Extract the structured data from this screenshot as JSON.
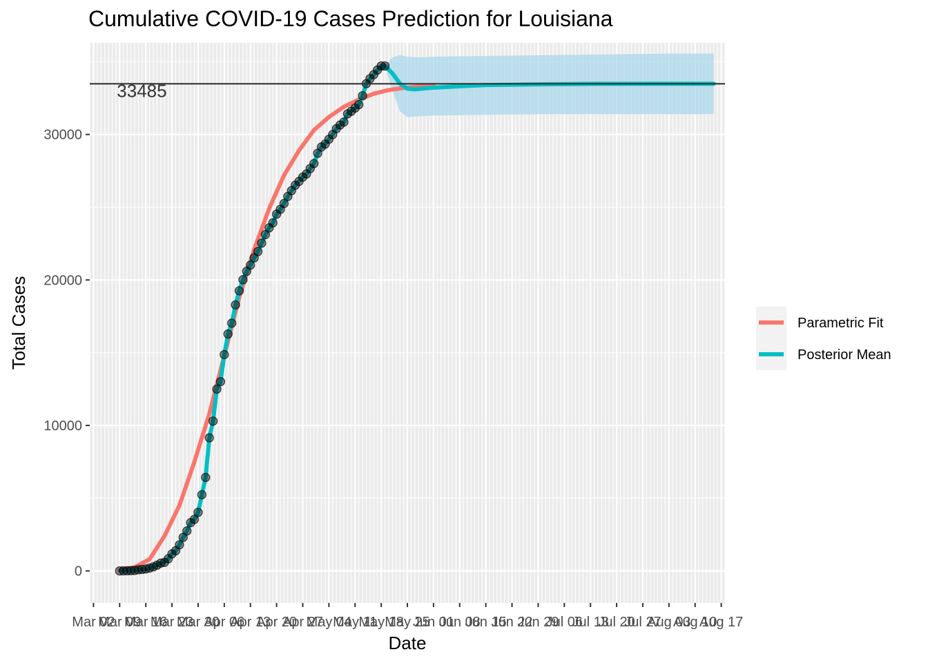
{
  "chart_data": {
    "type": "line",
    "title": "Cumulative COVID-19 Cases Prediction for Louisiana",
    "xlabel": "Date",
    "ylabel": "Total Cases",
    "xlim": [
      "2020-03-01",
      "2020-08-18"
    ],
    "ylim": [
      -2200,
      36300
    ],
    "grid": true,
    "legend_position": "right",
    "y_ticks": [
      0,
      10000,
      20000,
      30000
    ],
    "y_tick_labels": [
      "0",
      "10000",
      "20000",
      "30000"
    ],
    "x_ticks": [
      "2020-03-02",
      "2020-03-09",
      "2020-03-16",
      "2020-03-23",
      "2020-03-30",
      "2020-04-06",
      "2020-04-13",
      "2020-04-20",
      "2020-04-27",
      "2020-05-04",
      "2020-05-11",
      "2020-05-18",
      "2020-05-25",
      "2020-06-01",
      "2020-06-08",
      "2020-06-15",
      "2020-06-22",
      "2020-06-29",
      "2020-07-06",
      "2020-07-13",
      "2020-07-20",
      "2020-07-27",
      "2020-08-03",
      "2020-08-10",
      "2020-08-17"
    ],
    "x_tick_labels": [
      "Mar 02",
      "Mar 09",
      "Mar 16",
      "Mar 23",
      "Mar 30",
      "Apr 06",
      "Apr 13",
      "Apr 20",
      "Apr 27",
      "May 04",
      "May 11",
      "May 18",
      "May 25",
      "Jun 01",
      "Jun 08",
      "Jun 15",
      "Jun 22",
      "Jun 29",
      "Jul 06",
      "Jul 13",
      "Jul 20",
      "Jul 27",
      "Aug 03",
      "Aug 10",
      "Aug 17"
    ],
    "hline": {
      "value": 33485,
      "label": "33485",
      "color": "#333333"
    },
    "observed": {
      "dates": [
        "2020-03-09",
        "2020-03-10",
        "2020-03-11",
        "2020-03-12",
        "2020-03-13",
        "2020-03-14",
        "2020-03-15",
        "2020-03-16",
        "2020-03-17",
        "2020-03-18",
        "2020-03-19",
        "2020-03-20",
        "2020-03-21",
        "2020-03-22",
        "2020-03-23",
        "2020-03-24",
        "2020-03-25",
        "2020-03-26",
        "2020-03-27",
        "2020-03-28",
        "2020-03-29",
        "2020-03-30",
        "2020-03-31",
        "2020-04-01",
        "2020-04-02",
        "2020-04-03",
        "2020-04-04",
        "2020-04-05",
        "2020-04-06",
        "2020-04-07",
        "2020-04-08",
        "2020-04-09",
        "2020-04-10",
        "2020-04-11",
        "2020-04-12",
        "2020-04-13",
        "2020-04-14",
        "2020-04-15",
        "2020-04-16",
        "2020-04-17",
        "2020-04-18",
        "2020-04-19",
        "2020-04-20",
        "2020-04-21",
        "2020-04-22",
        "2020-04-23",
        "2020-04-24",
        "2020-04-25",
        "2020-04-26",
        "2020-04-27",
        "2020-04-28",
        "2020-04-29",
        "2020-04-30",
        "2020-05-01",
        "2020-05-02",
        "2020-05-03",
        "2020-05-04",
        "2020-05-05",
        "2020-05-06",
        "2020-05-07",
        "2020-05-08",
        "2020-05-09",
        "2020-05-10",
        "2020-05-11",
        "2020-05-12",
        "2020-05-13",
        "2020-05-14",
        "2020-05-15",
        "2020-05-16",
        "2020-05-17",
        "2020-05-18",
        "2020-05-19"
      ],
      "values": [
        1,
        6,
        13,
        19,
        36,
        77,
        103,
        136,
        196,
        280,
        392,
        537,
        585,
        837,
        1172,
        1388,
        1795,
        2305,
        2746,
        3315,
        3540,
        4025,
        5237,
        6424,
        9150,
        10297,
        12496,
        13010,
        14867,
        16284,
        17030,
        18283,
        19253,
        20014,
        20595,
        21016,
        21518,
        21951,
        22532,
        23118,
        23580,
        23928,
        24523,
        24854,
        25258,
        25739,
        26140,
        26512,
        26773,
        27068,
        27286,
        27660,
        28001,
        28711,
        29140,
        29340,
        29673,
        29996,
        30399,
        30652,
        30855,
        31417,
        31600,
        31815,
        32050,
        32662,
        33489,
        33837,
        34117,
        34432,
        34709,
        34709
      ]
    },
    "series": [
      {
        "name": "Parametric Fit",
        "color": "#F8766D",
        "dates": [
          "2020-03-09",
          "2020-03-13",
          "2020-03-17",
          "2020-03-21",
          "2020-03-25",
          "2020-03-29",
          "2020-04-02",
          "2020-04-06",
          "2020-04-10",
          "2020-04-14",
          "2020-04-18",
          "2020-04-22",
          "2020-04-26",
          "2020-04-30",
          "2020-05-04",
          "2020-05-08",
          "2020-05-12",
          "2020-05-16",
          "2020-05-20",
          "2020-05-24",
          "2020-05-28",
          "2020-06-01"
        ],
        "values": [
          50,
          250,
          800,
          2400,
          4500,
          7500,
          10800,
          14800,
          18800,
          22100,
          24900,
          27200,
          28900,
          30300,
          31200,
          31900,
          32400,
          32800,
          33050,
          33200,
          33300,
          33400
        ]
      },
      {
        "name": "Posterior Mean",
        "color": "#00BFC4",
        "dates": [
          "2020-05-19",
          "2020-05-21",
          "2020-05-23",
          "2020-05-25",
          "2020-05-27",
          "2020-05-31",
          "2020-06-07",
          "2020-06-15",
          "2020-07-01",
          "2020-07-15",
          "2020-08-01",
          "2020-08-15"
        ],
        "values": [
          34709,
          34200,
          33500,
          33150,
          33100,
          33200,
          33300,
          33400,
          33450,
          33480,
          33485,
          33485
        ]
      }
    ],
    "ribbon": {
      "color": "#A6D6EA",
      "dates": [
        "2020-05-19",
        "2020-05-21",
        "2020-05-23",
        "2020-05-25",
        "2020-05-28",
        "2020-06-01",
        "2020-06-15",
        "2020-07-01",
        "2020-07-15",
        "2020-08-01",
        "2020-08-15"
      ],
      "lower": [
        34709,
        33000,
        31600,
        31200,
        31250,
        31300,
        31350,
        31400,
        31400,
        31400,
        31400
      ],
      "upper": [
        34709,
        35300,
        35450,
        35350,
        35300,
        35350,
        35400,
        35450,
        35500,
        35550,
        35550
      ]
    }
  }
}
